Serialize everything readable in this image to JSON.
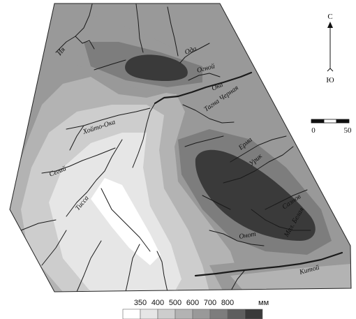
{
  "rivers": {
    "oda": "Ода",
    "ogn": "Огной",
    "ia": "Ия",
    "oka": "Ока",
    "tagna": "Тагна Черная",
    "hoyto": "Хойто-Ока",
    "erma": "Ерма",
    "urik": "Урик",
    "sedai": "Сегай",
    "tissa": "Тисса",
    "sosnov": "Сазнов",
    "malaya": "Мал. Белая",
    "onot": "Онот",
    "kitoy": "Китой"
  },
  "compass": {
    "north": "С",
    "south": "Ю"
  },
  "scale": {
    "start": "0",
    "end": "50"
  },
  "legend": {
    "unit": "мм",
    "classes": [
      {
        "label": "",
        "color": "#ffffff"
      },
      {
        "label": "350",
        "color": "#e6e6e6"
      },
      {
        "label": "400",
        "color": "#cdcdcd"
      },
      {
        "label": "500",
        "color": "#b3b3b3"
      },
      {
        "label": "600",
        "color": "#999999"
      },
      {
        "label": "700",
        "color": "#7d7d7d"
      },
      {
        "label": "800",
        "color": "#5e5e5e"
      },
      {
        "label": "",
        "color": "#3a3a3a"
      }
    ]
  }
}
